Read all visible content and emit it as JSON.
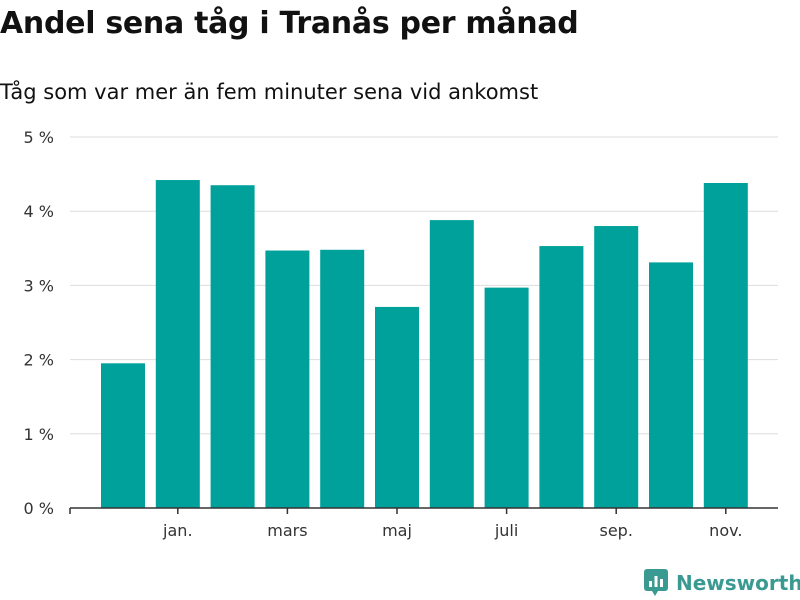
{
  "chart_data": {
    "type": "bar",
    "title": "Andel sena tåg i Tranås per månad",
    "subtitle": "Tåg som var mer än fem minuter sena vid ankomst",
    "xlabel": "",
    "ylabel": "",
    "unit": "%",
    "ylim": [
      0,
      5
    ],
    "yticks": [
      0,
      1,
      2,
      3,
      4,
      5
    ],
    "ytick_labels": [
      "0 %",
      "1 %",
      "2 %",
      "3 %",
      "4 %",
      "5 %"
    ],
    "xtick_labels": [
      {
        "label": "jan.",
        "index": 1
      },
      {
        "label": "mars",
        "index": 3
      },
      {
        "label": "maj",
        "index": 5
      },
      {
        "label": "juli",
        "index": 7
      },
      {
        "label": "sep.",
        "index": 9
      },
      {
        "label": "nov.",
        "index": 11
      }
    ],
    "values": [
      1.95,
      4.42,
      4.35,
      3.47,
      3.48,
      2.71,
      3.88,
      2.97,
      3.53,
      3.8,
      3.31,
      4.38
    ],
    "bar_color": "#00a19a",
    "grid": true
  },
  "brand": {
    "name": "Newsworthy",
    "icon": "newsworthy-logo-icon",
    "color": "#3a9a92"
  }
}
